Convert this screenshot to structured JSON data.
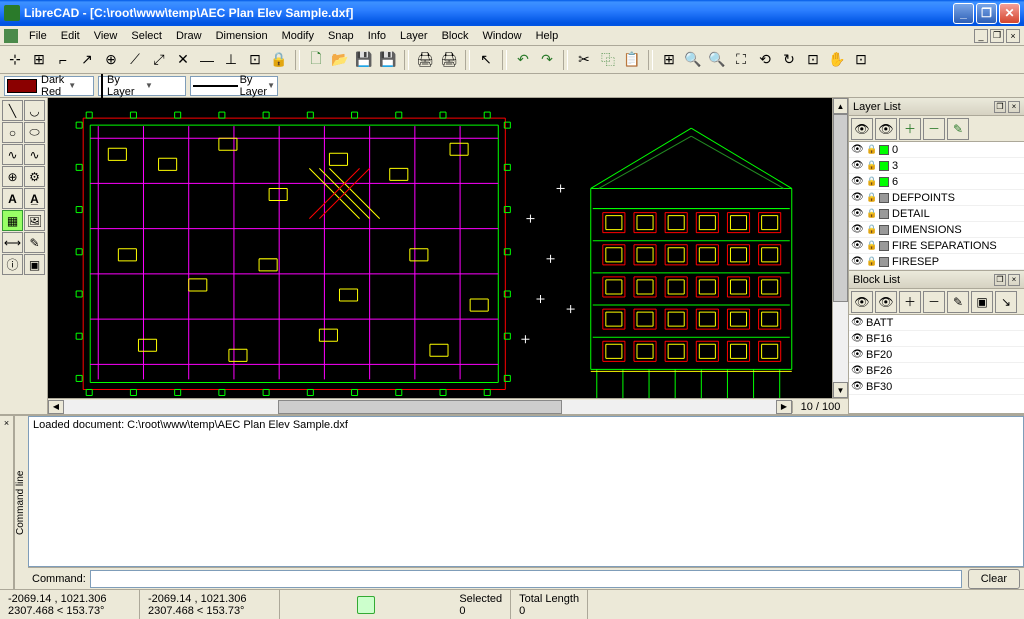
{
  "window": {
    "title": "LibreCAD - [C:\\root\\www\\temp\\AEC Plan Elev Sample.dxf]"
  },
  "menus": [
    "File",
    "Edit",
    "View",
    "Select",
    "Draw",
    "Dimension",
    "Modify",
    "Snap",
    "Info",
    "Layer",
    "Block",
    "Window",
    "Help"
  ],
  "properties": {
    "color_name": "Dark Red",
    "color_hex": "#8b0000",
    "linewidth": "By Layer",
    "linetype": "By Layer"
  },
  "zoom": "10 / 100",
  "layer_panel": {
    "title": "Layer List",
    "layers": [
      {
        "name": "0",
        "color": "#00ff00"
      },
      {
        "name": "3",
        "color": "#00ff00"
      },
      {
        "name": "6",
        "color": "#00ff00"
      },
      {
        "name": "DEFPOINTS",
        "color": "#999999"
      },
      {
        "name": "DETAIL",
        "color": "#999999"
      },
      {
        "name": "DIMENSIONS",
        "color": "#999999"
      },
      {
        "name": "FIRE SEPARATIONS",
        "color": "#999999"
      },
      {
        "name": "FIRESEP",
        "color": "#999999"
      }
    ]
  },
  "block_panel": {
    "title": "Block List",
    "blocks": [
      {
        "name": "BATT"
      },
      {
        "name": "BF16"
      },
      {
        "name": "BF20"
      },
      {
        "name": "BF26"
      },
      {
        "name": "BF30"
      }
    ]
  },
  "command": {
    "label": "Command line",
    "log": "Loaded document: C:\\root\\www\\temp\\AEC Plan Elev Sample.dxf",
    "prompt": "Command:",
    "clear": "Clear"
  },
  "status": {
    "abs1": "-2069.14 , 1021.306",
    "rel1": "2307.468 < 153.73°",
    "abs2": "-2069.14 , 1021.306",
    "rel2": "2307.468 < 153.73°",
    "selected_label": "Selected",
    "selected_val": "0",
    "length_label": "Total Length",
    "length_val": "0"
  },
  "cad_colors": {
    "red": "#ff0000",
    "green": "#00ff00",
    "yellow": "#ffff00",
    "magenta": "#ff00ff",
    "cyan": "#00ffff",
    "blue": "#4169e1",
    "white": "#ffffff",
    "darkgreen": "#228b22"
  }
}
